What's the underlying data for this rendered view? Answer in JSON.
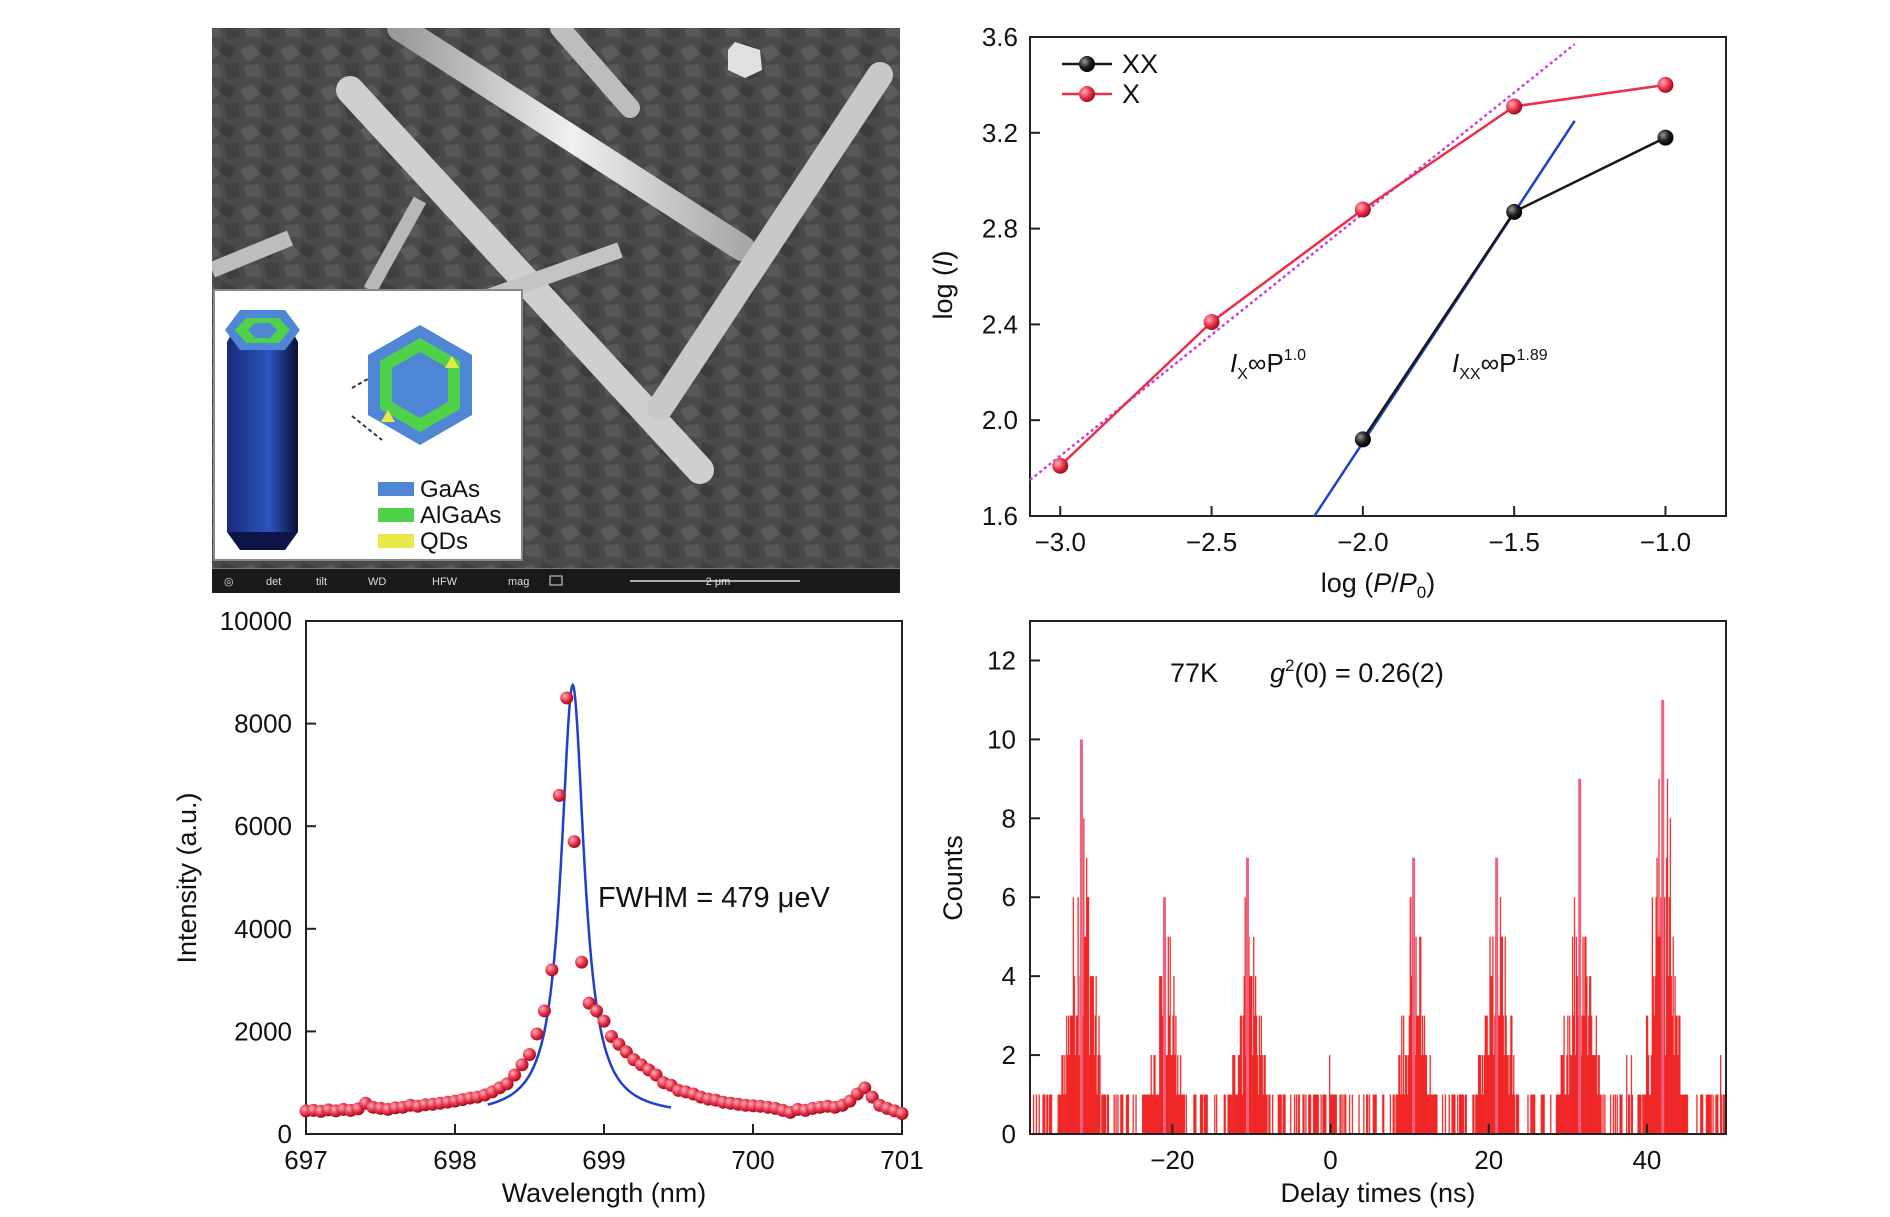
{
  "sem_panel": {
    "legend": [
      {
        "label": "GaAs",
        "color": "#4f86d6"
      },
      {
        "label": "AlGaAs",
        "color": "#4fd24a"
      },
      {
        "label": "QDs",
        "color": "#e8e84a"
      }
    ],
    "status_bar": [
      "det",
      "tilt",
      "WD",
      "HFW",
      "mag"
    ],
    "scale_label": "2 μm"
  },
  "colors": {
    "x": "#e8304a",
    "xx": "#1a1a1a",
    "fit": "#2040c8",
    "dotted": "#d040d0",
    "red": "#ee1111"
  },
  "chart_data": [
    {
      "type": "line",
      "xlabel": "log (P/P₀)",
      "ylabel": "log (I)",
      "xlim": [
        -3.1,
        -0.8
      ],
      "ylim": [
        1.6,
        3.6
      ],
      "x_ticks": [
        "−3.0",
        "−2.5",
        "−2.0",
        "−1.5",
        "−1.0"
      ],
      "y_ticks": [
        "1.6",
        "2.0",
        "2.4",
        "2.8",
        "3.2",
        "3.6"
      ],
      "legend_position": "top-left",
      "series": [
        {
          "name": "XX",
          "x": [
            -2.0,
            -1.5,
            -1.0
          ],
          "y": [
            1.92,
            2.87,
            3.18
          ]
        },
        {
          "name": "X",
          "x": [
            -3.0,
            -2.5,
            -2.0,
            -1.5,
            -1.0
          ],
          "y": [
            1.81,
            2.41,
            2.88,
            3.31,
            3.4
          ]
        }
      ],
      "fits": [
        {
          "label": "I_X∝P^1.0",
          "x": [
            -3.1,
            -1.3
          ],
          "y": [
            1.75,
            3.57
          ]
        },
        {
          "label": "I_XX∝P^1.89",
          "x": [
            -2.16,
            -1.3
          ],
          "y": [
            1.6,
            3.25
          ]
        }
      ],
      "annotations": [
        {
          "base": "I",
          "sub": "X",
          "mid": "∞P",
          "sup": "1.0"
        },
        {
          "base": "I",
          "sub": "XX",
          "mid": "∞P",
          "sup": "1.89"
        }
      ]
    },
    {
      "type": "scatter",
      "xlabel": "Wavelength (nm)",
      "ylabel": "Intensity (a.u.)",
      "xlim": [
        697,
        701
      ],
      "ylim": [
        0,
        10000
      ],
      "x_ticks": [
        "697",
        "698",
        "699",
        "700",
        "701"
      ],
      "y_ticks": [
        "0",
        "2000",
        "4000",
        "6000",
        "8000",
        "10000"
      ],
      "annotation": "FWHM = 479 μeV",
      "fit_range": [
        698.22,
        699.45
      ],
      "fit": {
        "center": 698.79,
        "fwhm": 0.188,
        "peak": 8400,
        "baseline": 350
      },
      "points": {
        "x": [
          697.0,
          697.05,
          697.1,
          697.15,
          697.2,
          697.25,
          697.3,
          697.35,
          697.4,
          697.45,
          697.5,
          697.55,
          697.6,
          697.65,
          697.7,
          697.75,
          697.8,
          697.85,
          697.9,
          697.95,
          698.0,
          698.05,
          698.1,
          698.15,
          698.2,
          698.25,
          698.3,
          698.35,
          698.4,
          698.45,
          698.5,
          698.55,
          698.6,
          698.65,
          698.7,
          698.75,
          698.8,
          698.85,
          698.9,
          698.95,
          699.0,
          699.05,
          699.1,
          699.15,
          699.2,
          699.25,
          699.3,
          699.35,
          699.4,
          699.45,
          699.5,
          699.55,
          699.6,
          699.65,
          699.7,
          699.75,
          699.8,
          699.85,
          699.9,
          699.95,
          700.0,
          700.05,
          700.1,
          700.15,
          700.2,
          700.25,
          700.3,
          700.35,
          700.4,
          700.45,
          700.5,
          700.55,
          700.6,
          700.65,
          700.7,
          700.75,
          700.8,
          700.85,
          700.9,
          700.95,
          701.0
        ],
        "y": [
          450,
          460,
          440,
          470,
          450,
          480,
          460,
          490,
          600,
          520,
          500,
          480,
          510,
          520,
          560,
          540,
          570,
          580,
          600,
          620,
          640,
          670,
          700,
          720,
          760,
          820,
          900,
          980,
          1150,
          1350,
          1550,
          1950,
          2400,
          3200,
          6600,
          8500,
          5700,
          3350,
          2550,
          2400,
          2200,
          1900,
          1750,
          1600,
          1450,
          1350,
          1250,
          1150,
          1000,
          950,
          850,
          820,
          780,
          720,
          680,
          660,
          620,
          600,
          580,
          560,
          550,
          540,
          520,
          500,
          460,
          420,
          480,
          460,
          500,
          520,
          540,
          520,
          560,
          640,
          780,
          900,
          720,
          560,
          500,
          450,
          400
        ]
      }
    },
    {
      "type": "bar",
      "xlabel": "Delay times (ns)",
      "ylabel": "Counts",
      "xlim": [
        -38,
        50
      ],
      "ylim": [
        0,
        13
      ],
      "x_ticks": [
        "−20",
        "0",
        "20",
        "40"
      ],
      "x_tick_values": [
        -20,
        0,
        20,
        40
      ],
      "y_ticks": [
        "0",
        "2",
        "4",
        "6",
        "8",
        "10",
        "12"
      ],
      "annotation_temp": "77K",
      "annotation_g2": {
        "base": "g",
        "sup": "2",
        "rest": "(0) = 0.26(2)"
      },
      "peaks": [
        {
          "center": -31.5,
          "max": 10
        },
        {
          "center": -21.0,
          "max": 6
        },
        {
          "center": -10.5,
          "max": 7
        },
        {
          "center": 10.5,
          "max": 7
        },
        {
          "center": 21.0,
          "max": 7
        },
        {
          "center": 31.5,
          "max": 9
        },
        {
          "center": 42.0,
          "max": 11
        }
      ]
    }
  ]
}
